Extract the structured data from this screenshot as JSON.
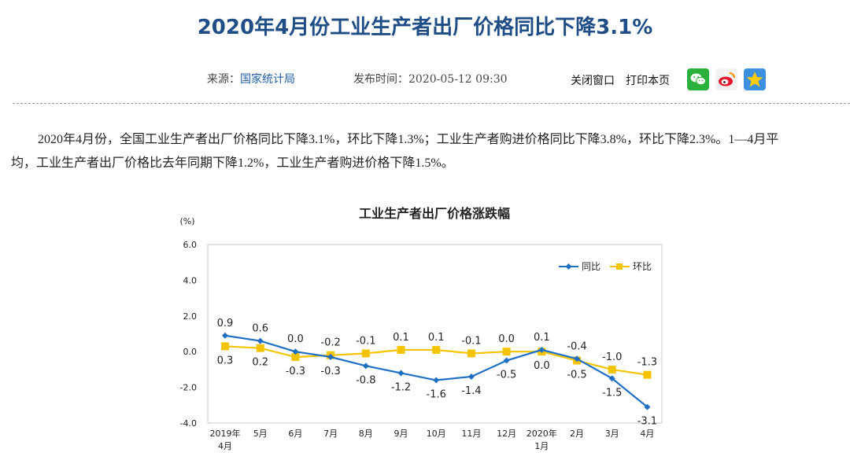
{
  "page": {
    "title": "2020年4月份工业生产者出厂价格同比下降3.1%",
    "source_label": "来源：",
    "source_link": "国家统计局",
    "publish_label": "发布时间：",
    "publish_time": "2020-05-12 09:30",
    "close_window": "关闭窗口",
    "print_page": "打印本页",
    "share_icons": [
      "wechat-icon",
      "weibo-icon",
      "qzone-icon"
    ],
    "paragraph": "2020年4月份，全国工业生产者出厂价格同比下降3.1%，环比下降1.3%；工业生产者购进价格同比下降3.8%，环比下降2.3%。1—4月平均，工业生产者出厂价格比去年同期下降1.2%，工业生产者购进价格下降1.5%。"
  },
  "colors": {
    "title": "#1f4e87",
    "yoy": "#1f6fc5",
    "mom": "#f5c400"
  },
  "chart_data": {
    "type": "line",
    "title": "工业生产者出厂价格涨跌幅",
    "ylabel": "(%)",
    "ylim": [
      -4.0,
      6.0
    ],
    "yticks": [
      "6.0",
      "4.0",
      "2.0",
      "0.0",
      "-2.0",
      "-4.0"
    ],
    "categories": [
      "2019年\n4月",
      "5月",
      "6月",
      "7月",
      "8月",
      "9月",
      "10月",
      "11月",
      "12月",
      "2020年\n1月",
      "2月",
      "3月",
      "4月"
    ],
    "series": [
      {
        "name": "同比",
        "values": [
          0.9,
          0.6,
          0.0,
          -0.3,
          -0.8,
          -1.2,
          -1.6,
          -1.4,
          -0.5,
          0.1,
          -0.4,
          -1.5,
          -3.1
        ],
        "labels": [
          "0.9",
          "0.6",
          "0.0",
          "-0.3",
          "-0.8",
          "-1.2",
          "-1.6",
          "-1.4",
          "-0.5",
          "0.1",
          "-0.4",
          "-1.5",
          "-3.1"
        ]
      },
      {
        "name": "环比",
        "values": [
          0.3,
          0.2,
          -0.3,
          -0.2,
          -0.1,
          0.1,
          0.1,
          -0.1,
          0.0,
          0.0,
          -0.5,
          -1.0,
          -1.3
        ],
        "labels": [
          "0.3",
          "0.2",
          "-0.3",
          "-0.2",
          "-0.1",
          "0.1",
          "0.1",
          "-0.1",
          "0.0",
          "0.0",
          "-0.5",
          "-1.0",
          "-1.3"
        ]
      }
    ]
  }
}
